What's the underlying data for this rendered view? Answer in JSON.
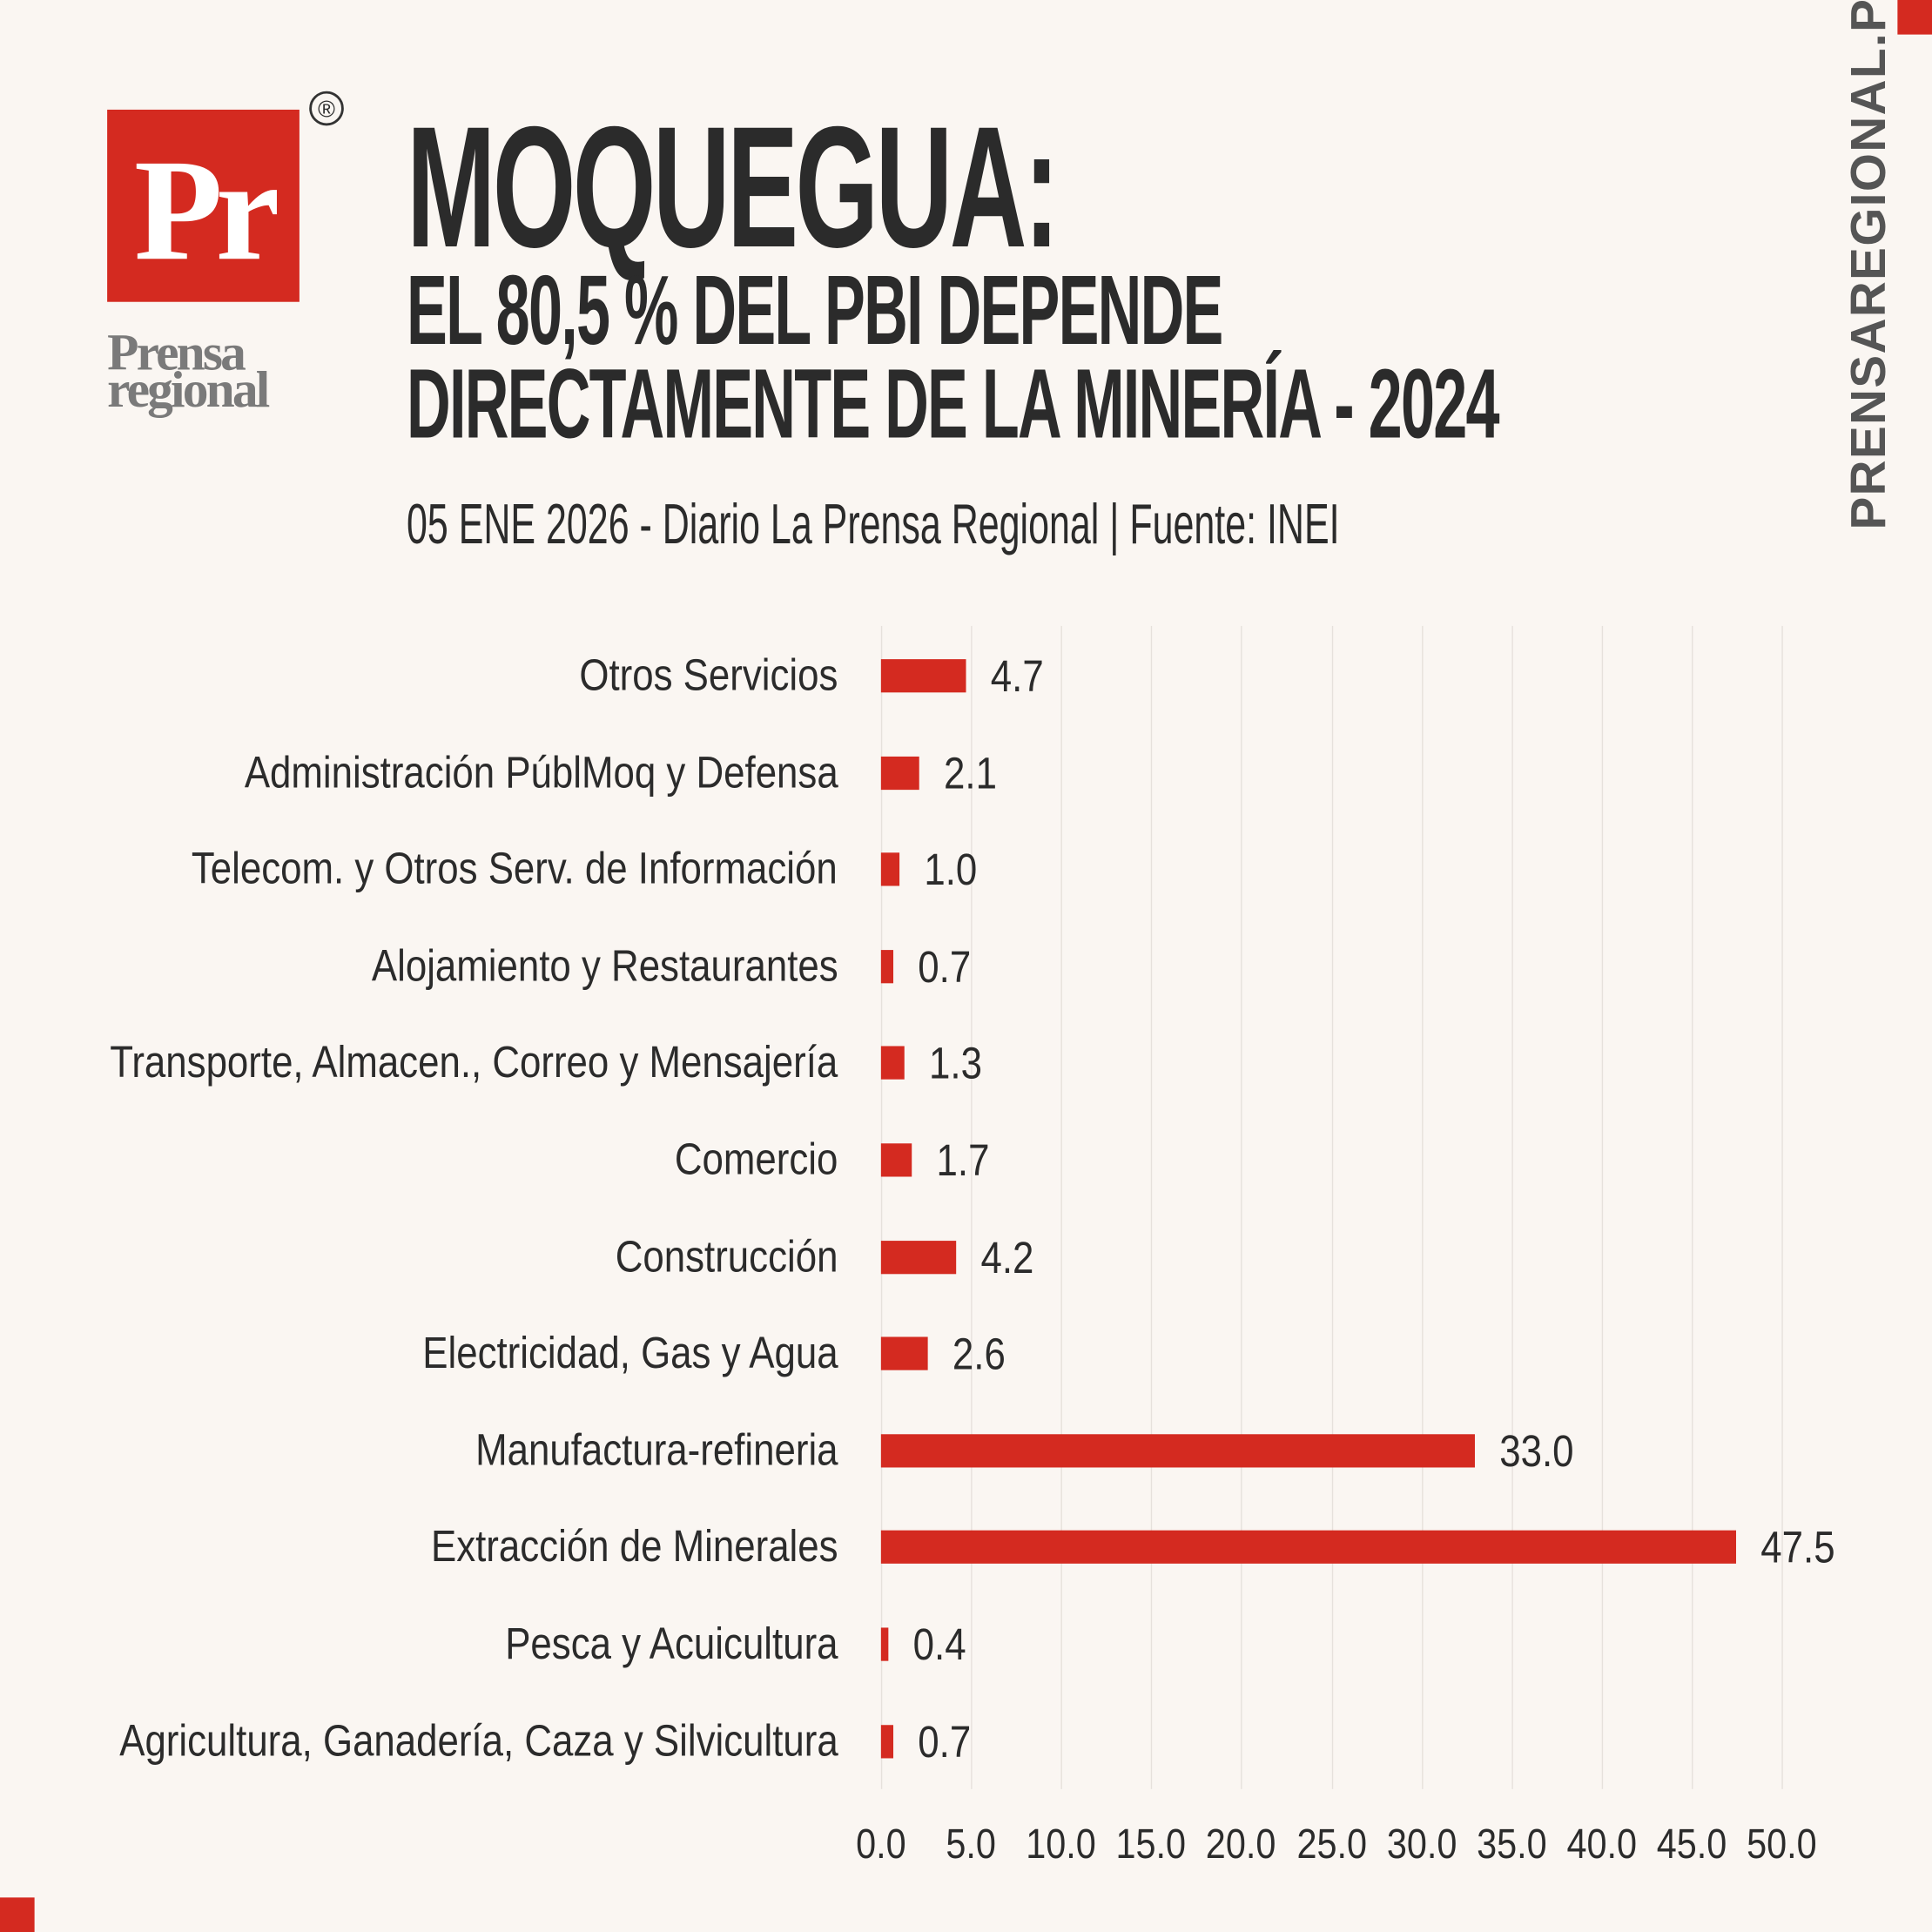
{
  "brand": {
    "logo_text": "Pr",
    "wordmark": "Prensa regional",
    "registered": "®",
    "side_text": "PRENSAREGIONAL.PE",
    "accent": "#d42a20"
  },
  "header": {
    "title": "MOQUEGUA:",
    "subtitle_line1": "EL 80,5 % DEL PBI DEPENDE",
    "subtitle_line2": "DIRECTAMENTE DE LA MINERÍA - 2024",
    "dateline": "05 ENE 2026 - Diario La Prensa Regional | Fuente: INEI"
  },
  "chart_data": {
    "type": "bar",
    "orientation": "horizontal",
    "categories": [
      "Otros Servicios",
      "Administración PúblMoq y Defensa",
      "Telecom. y Otros Serv. de Información",
      "Alojamiento y Restaurantes",
      "Transporte, Almacen., Correo y Mensajería",
      "Comercio",
      "Construcción",
      "Electricidad, Gas y Agua",
      "Manufactura-refineria",
      "Extracción de Minerales",
      "Pesca y Acuicultura",
      "Agricultura, Ganadería, Caza y Silvicultura"
    ],
    "values": [
      4.7,
      2.1,
      1.0,
      0.7,
      1.3,
      1.7,
      4.2,
      2.6,
      33.0,
      47.5,
      0.4,
      0.7
    ],
    "value_labels": [
      "4.7",
      "2.1",
      "1.0",
      "0.7",
      "1.3",
      "1.7",
      "4.2",
      "2.6",
      "33.0",
      "47.5",
      "0.4",
      "0.7"
    ],
    "xlim": [
      0,
      50
    ],
    "xticks": [
      "0.0",
      "5.0",
      "10.0",
      "15.0",
      "20.0",
      "25.0",
      "30.0",
      "35.0",
      "40.0",
      "45.0",
      "50.0"
    ],
    "grid": true,
    "color": "#d42a20"
  }
}
